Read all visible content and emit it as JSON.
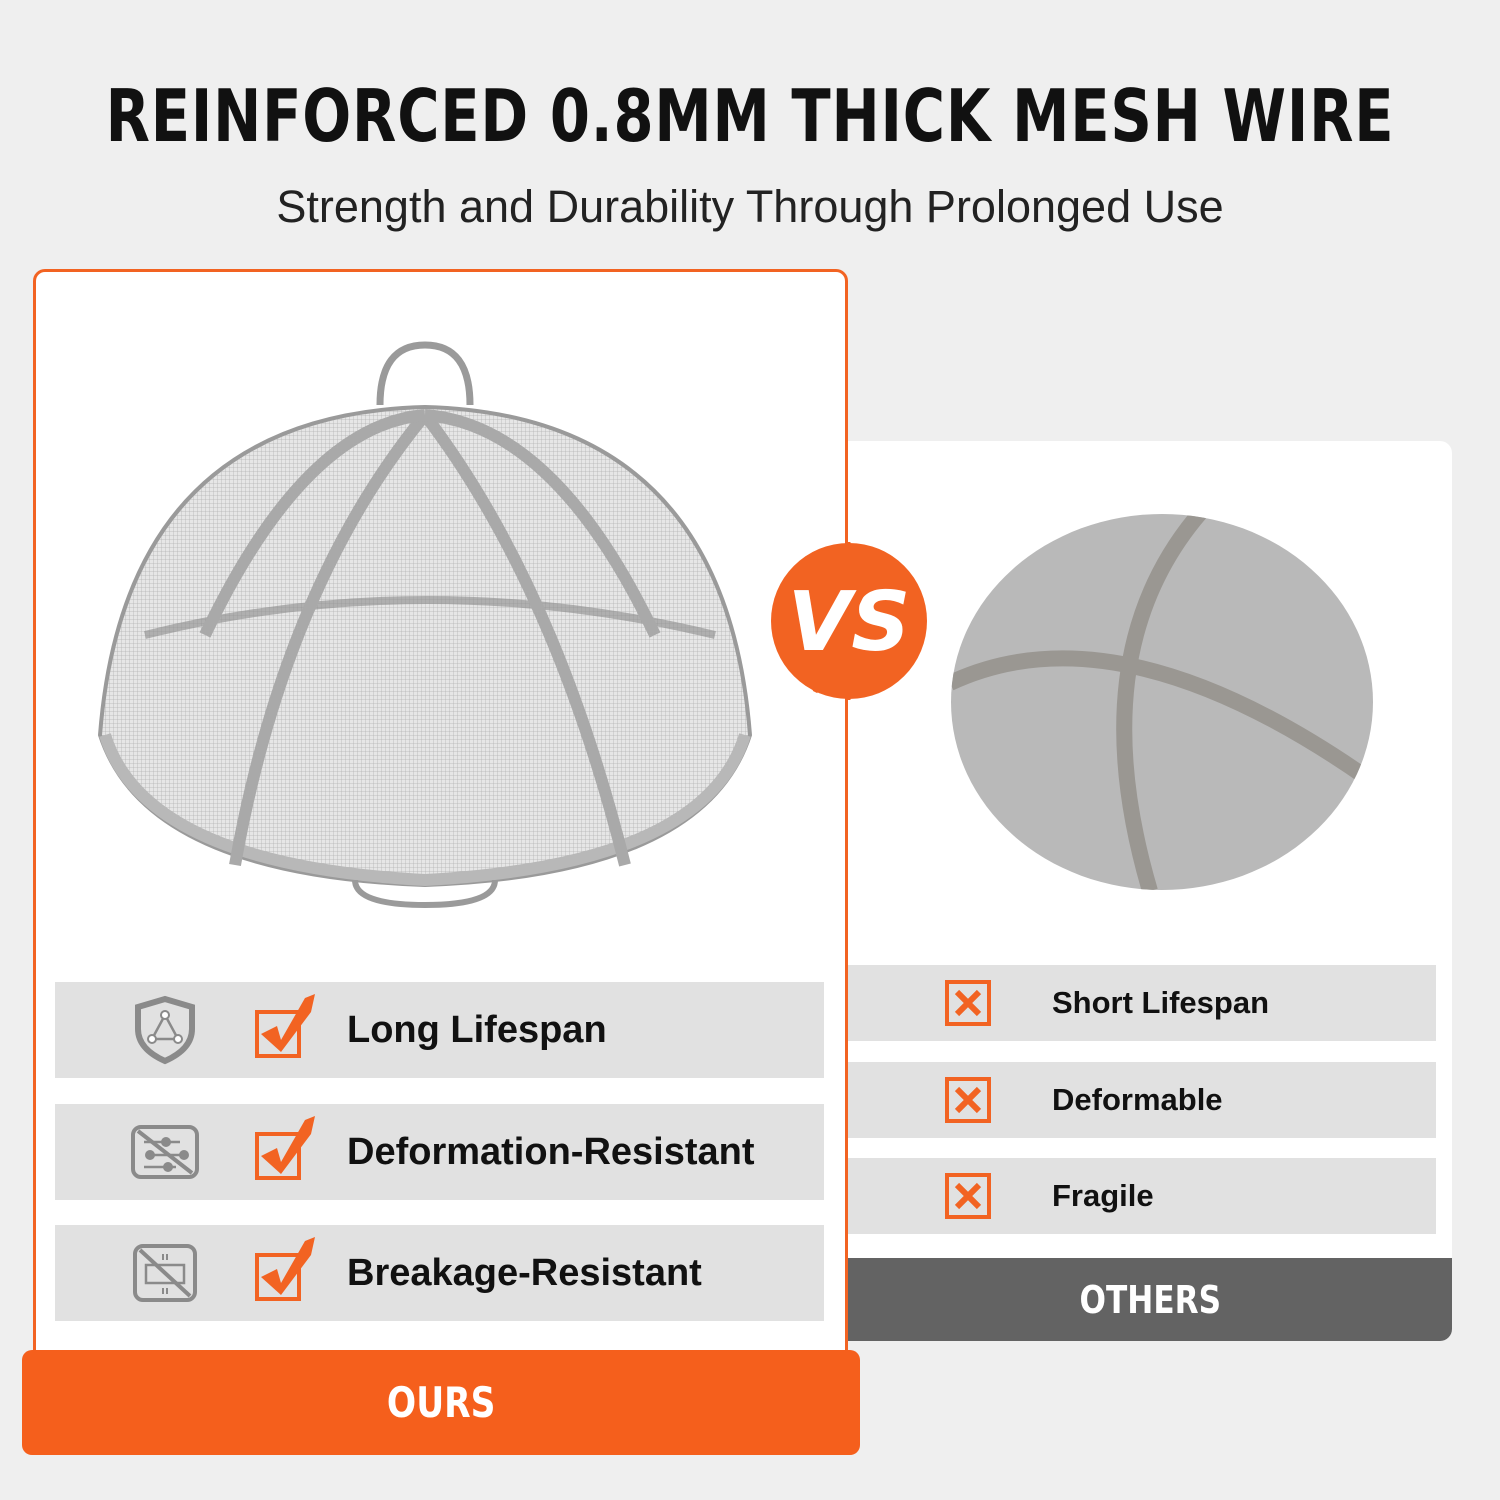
{
  "header": {
    "title": "REINFORCED 0.8MM THICK MESH WIRE",
    "subtitle": "Strength and Durability Through Prolonged Use"
  },
  "ours": {
    "label": "OURS",
    "features": [
      {
        "icon": "shield-icon",
        "label": "Long Lifespan"
      },
      {
        "icon": "no-deformation-icon",
        "label": "Deformation-Resistant"
      },
      {
        "icon": "no-breakage-icon",
        "label": "Breakage-Resistant"
      }
    ]
  },
  "others": {
    "label": "OTHERS",
    "features": [
      {
        "icon": "x-box-icon",
        "label": "Short Lifespan"
      },
      {
        "icon": "x-box-icon",
        "label": "Deformable"
      },
      {
        "icon": "x-box-icon",
        "label": "Fragile"
      }
    ]
  },
  "vs_badge": "VS",
  "colors": {
    "accent": "#f55f1c",
    "gray": "#636363",
    "row": "#e1e1e1",
    "background": "#efefef"
  }
}
